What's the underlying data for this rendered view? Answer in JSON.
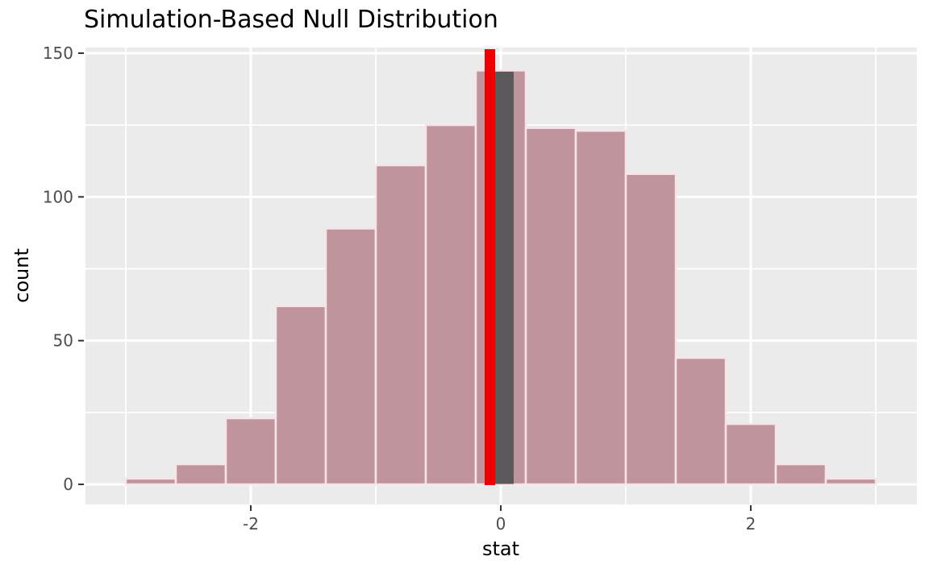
{
  "page": {
    "background_color": "#FFFFFF"
  },
  "chart_data": {
    "type": "bar",
    "subtype": "histogram",
    "title": "Simulation-Based Null Distribution",
    "xlabel": "stat",
    "ylabel": "count",
    "grid": true,
    "legend_position": "none",
    "xlim": [
      -3.32,
      3.33
    ],
    "ylim": [
      0,
      152
    ],
    "x_ticks": [
      {
        "v": -2,
        "label": "-2"
      },
      {
        "v": 0,
        "label": "0"
      },
      {
        "v": 2,
        "label": "2"
      }
    ],
    "y_ticks": [
      {
        "v": 0,
        "label": "0"
      },
      {
        "v": 50,
        "label": "50"
      },
      {
        "v": 100,
        "label": "100"
      },
      {
        "v": 150,
        "label": "150"
      }
    ],
    "x_minor_gridlines": [
      -3,
      -1,
      1,
      3
    ],
    "y_minor_gridlines": [
      25,
      75,
      125
    ],
    "bins": {
      "start": -3.0,
      "width": 0.4,
      "counts": [
        2,
        7,
        23,
        62,
        89,
        111,
        125,
        144,
        124,
        123,
        108,
        44,
        21,
        7,
        2
      ]
    },
    "observed_stat_line": {
      "x": -0.087,
      "height_counts": 151.4,
      "stroke_width_px": 13,
      "color": "#EE0000"
    },
    "shaded_region": {
      "x_from": -0.045,
      "x_to": 0.103,
      "count": 144,
      "color": "#595959"
    },
    "colors": {
      "panel": "#EBEBEB",
      "gridline": "#FFFFFF",
      "bar_fill": "#BF949C",
      "bar_border": "#F8E3E8",
      "tick_label": "#4D4D4D",
      "tick_mark": "#333333",
      "axis_title": "#000000",
      "title": "#000000"
    }
  }
}
